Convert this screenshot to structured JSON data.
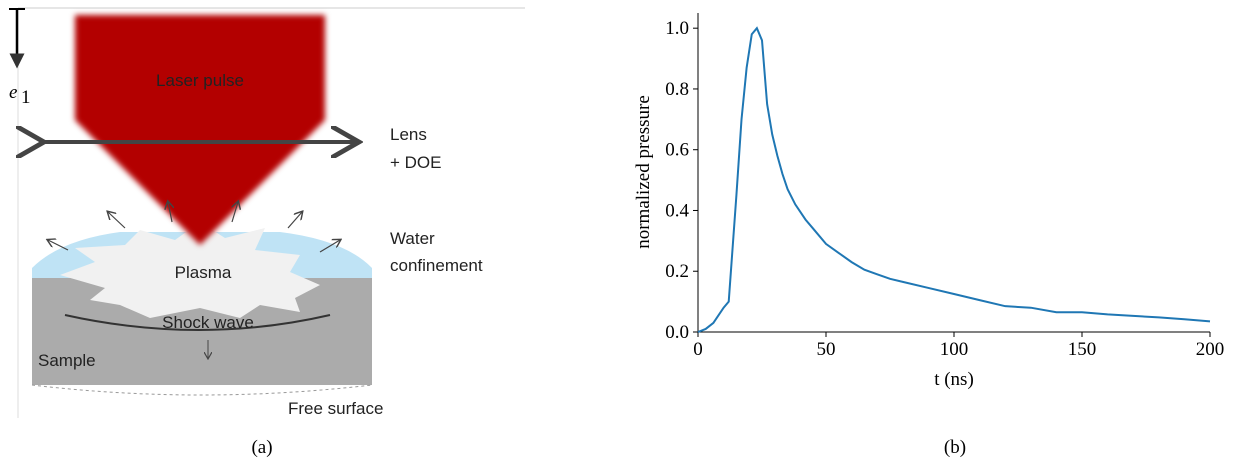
{
  "diagram": {
    "axis_label": "e",
    "axis_subscript": "1",
    "laser": "Laser pulse",
    "lens": [
      "Lens",
      "+ DOE"
    ],
    "water": [
      "Water",
      "confinement"
    ],
    "plasma": "Plasma",
    "shock": "Shock wave",
    "sample": "Sample",
    "free_surface": "Free surface",
    "caption": "(a)"
  },
  "chart_data": {
    "type": "line",
    "caption": "(b)",
    "x_label": "t (ns)",
    "y_label": "normalized pressure",
    "x": [
      0,
      3,
      6,
      10,
      12,
      15,
      17,
      19,
      21,
      23,
      25,
      27,
      29,
      31,
      33,
      35,
      38,
      42,
      45,
      50,
      55,
      60,
      65,
      70,
      75,
      80,
      90,
      100,
      110,
      120,
      130,
      140,
      150,
      160,
      170,
      180,
      190,
      200
    ],
    "values": [
      0,
      0.01,
      0.03,
      0.08,
      0.1,
      0.45,
      0.7,
      0.87,
      0.98,
      1.0,
      0.96,
      0.75,
      0.65,
      0.58,
      0.52,
      0.47,
      0.42,
      0.37,
      0.34,
      0.29,
      0.26,
      0.23,
      0.205,
      0.19,
      0.175,
      0.165,
      0.145,
      0.125,
      0.105,
      0.085,
      0.08,
      0.065,
      0.065,
      0.058,
      0.053,
      0.048,
      0.042,
      0.035
    ],
    "color": "#1f77b4",
    "xlim": [
      0,
      200
    ],
    "ylim": [
      0,
      1.05
    ],
    "xticks": [
      0,
      50,
      100,
      150,
      200
    ],
    "yticks": [
      {
        "value": 0,
        "label": "0.0"
      },
      0.2,
      0.4,
      0.6,
      0.8,
      {
        "value": 1,
        "label": "1.0"
      }
    ]
  }
}
